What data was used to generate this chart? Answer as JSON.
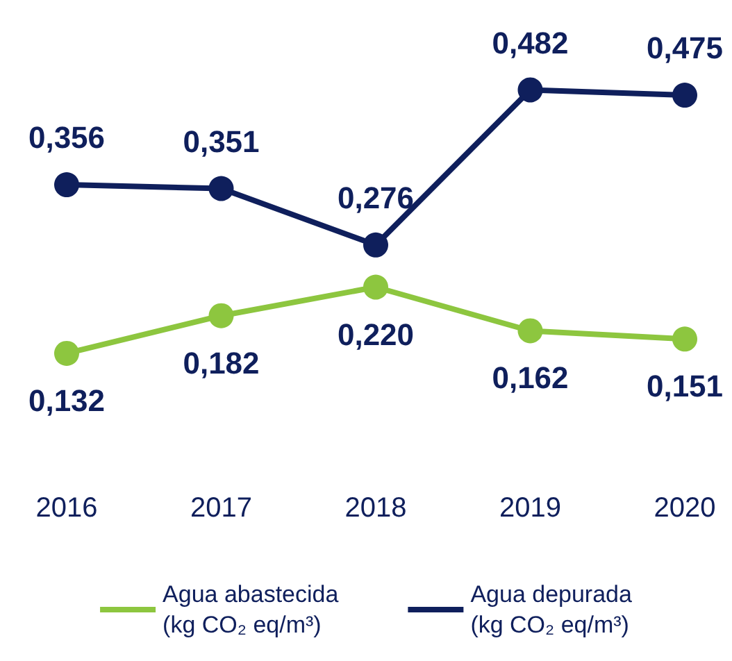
{
  "chart_data": {
    "type": "line",
    "categories": [
      "2016",
      "2017",
      "2018",
      "2019",
      "2020"
    ],
    "series": [
      {
        "name": "Agua abastecida\n(kg CO₂ eq/m³)",
        "color": "#8dc63f",
        "values": [
          0.132,
          0.182,
          0.22,
          0.162,
          0.151
        ],
        "value_labels": [
          "0,132",
          "0,182",
          "0,220",
          "0,162",
          "0,151"
        ]
      },
      {
        "name": "Agua depurada\n(kg CO₂ eq/m³)",
        "color": "#0f1f5c",
        "values": [
          0.356,
          0.351,
          0.276,
          0.482,
          0.475
        ],
        "value_labels": [
          "0,356",
          "0,351",
          "0,276",
          "0,482",
          "0,475"
        ]
      }
    ],
    "tick_labels": "x",
    "grid": false,
    "legend": "bottom",
    "marker": "circle",
    "line_style": "solid"
  }
}
